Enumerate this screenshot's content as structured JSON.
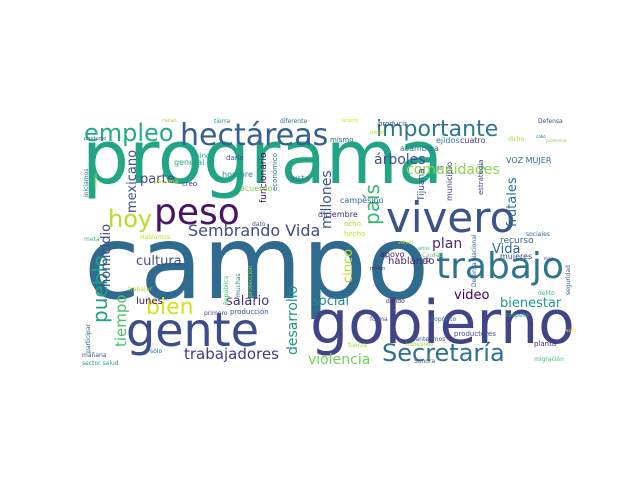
{
  "words": [
    {
      "text": "programa",
      "c": "#21a585"
    },
    {
      "text": "campo",
      "c": "#2e6b8e"
    },
    {
      "text": "gobierno",
      "c": "#414487"
    },
    {
      "text": "gente",
      "c": "#3d4d8a"
    },
    {
      "text": "vivero",
      "c": "#3b528b"
    },
    {
      "text": "trabajo",
      "c": "#2b758e"
    },
    {
      "text": "peso",
      "c": "#471365"
    },
    {
      "text": "hectáreas",
      "c": "#35608d"
    },
    {
      "text": "importante",
      "c": "#2a788e"
    },
    {
      "text": "empleo",
      "c": "#25ab82"
    },
    {
      "text": "Secretaría",
      "c": "#2d718e"
    },
    {
      "text": "hoy",
      "c": "#b5de2b"
    },
    {
      "text": "bien",
      "c": "#d2e21b"
    },
    {
      "text": "país",
      "c": "#38b977"
    },
    {
      "text": "pueblo",
      "c": "#1fa088"
    },
    {
      "text": "Sembrando Vida",
      "c": "#3e4a89"
    },
    {
      "text": "trabajadores",
      "c": "#443983"
    },
    {
      "text": "desarrollo",
      "c": "#1f968b"
    },
    {
      "text": "millones",
      "c": "#39558c"
    },
    {
      "text": "tiempo",
      "c": "#4ac16d"
    },
    {
      "text": "homicidio",
      "c": "#3e4989"
    },
    {
      "text": "mexicano",
      "c": "#3b528b"
    },
    {
      "text": "violencia",
      "c": "#73d056"
    },
    {
      "text": "comunidades",
      "c": "#8bd646"
    },
    {
      "text": "árboles",
      "c": "#3b528b"
    },
    {
      "text": "frutales",
      "c": "#2c728e"
    },
    {
      "text": "cultura",
      "c": "#3e4c8a"
    },
    {
      "text": "parte",
      "c": "#3f4889"
    },
    {
      "text": "salario",
      "c": "#46337f"
    },
    {
      "text": "social",
      "c": "#25858e"
    },
    {
      "text": "bienestar",
      "c": "#1f9a8a"
    },
    {
      "text": "plan",
      "c": "#472c7a"
    },
    {
      "text": "video",
      "c": "#440154"
    },
    {
      "text": "Vida",
      "c": "#31688e"
    },
    {
      "text": "cinco",
      "c": "#b8de29"
    },
    {
      "text": "hablando",
      "c": "#482173"
    },
    {
      "text": "lunes",
      "c": "#481769"
    },
    {
      "text": "recurso",
      "c": "#31688e"
    },
    {
      "text": "funcionario",
      "c": "#440154"
    },
    {
      "text": "justo",
      "c": "#2a788e"
    },
    {
      "text": "diciembre",
      "c": "#46307e"
    },
    {
      "text": "apoyo",
      "c": "#482071"
    },
    {
      "text": "mujeres",
      "c": "#3f4788"
    },
    {
      "text": "VOZ MUJER",
      "c": "#2e6e8e"
    },
    {
      "text": "cuatro",
      "c": "#463480"
    },
    {
      "text": "asamblea",
      "c": "#2a778e"
    },
    {
      "text": "ejidos",
      "c": "#277f8e"
    },
    {
      "text": "municipio",
      "c": "#404588"
    },
    {
      "text": "estrategia",
      "c": "#3e4a89"
    },
    {
      "text": "Tijuana",
      "c": "#3b528b"
    },
    {
      "text": "campesino",
      "c": "#31688e"
    },
    {
      "text": "económico",
      "c": "#2e6e8e"
    },
    {
      "text": "hombre",
      "c": "#23888e"
    },
    {
      "text": "general",
      "c": "#22a884"
    },
    {
      "text": "acuerdo",
      "c": "#79d151"
    },
    {
      "text": "creo",
      "c": "#453882"
    },
    {
      "text": "darle",
      "c": "#3a548c"
    },
    {
      "text": "sino",
      "c": "#22a884"
    },
    {
      "text": "técnicos",
      "c": "#33b67a"
    },
    {
      "text": "mismo",
      "c": "#31688e"
    },
    {
      "text": "producir",
      "c": "#3e4989"
    },
    {
      "text": "ahorro",
      "c": "#d8e219"
    },
    {
      "text": "diferente",
      "c": "#2d708e"
    },
    {
      "text": "tierra",
      "c": "#20928c"
    },
    {
      "text": "cacao",
      "c": "#a0da39"
    },
    {
      "text": "Defensa",
      "c": "#3e4a89"
    },
    {
      "text": "mejor",
      "c": "#c0df25"
    },
    {
      "text": "dicho",
      "c": "#addc30"
    },
    {
      "text": "ir",
      "c": "#3d4d8a"
    },
    {
      "text": "dato",
      "c": "#3b528b"
    },
    {
      "text": "forma",
      "c": "#3a548c"
    },
    {
      "text": "dando",
      "c": "#482576"
    },
    {
      "text": "ocho",
      "c": "#b2dd2d"
    },
    {
      "text": "hecho",
      "c": "#cde11d"
    },
    {
      "text": "muchas",
      "c": "#2c728e"
    },
    {
      "text": "República",
      "c": "#4ac16d"
    },
    {
      "text": "protección",
      "c": "#86d549"
    },
    {
      "text": "producción",
      "c": "#3b528b"
    },
    {
      "text": "primero",
      "c": "#3f4788"
    },
    {
      "text": "sólo",
      "c": "#2e6e8e"
    },
    {
      "text": "fuerza",
      "c": "#9fda3a"
    },
    {
      "text": "planteamos",
      "c": "#3b528b"
    },
    {
      "text": "trabajando",
      "c": "#a2da37"
    },
    {
      "text": "productores",
      "c": "#3b528b"
    },
    {
      "text": "propósito",
      "c": "#2e6e8e"
    },
    {
      "text": "Sonora",
      "c": "#3b528b"
    },
    {
      "text": "Defensa Nacional",
      "c": "#38598c"
    },
    {
      "text": "Ciudad",
      "c": "#65cb5e"
    },
    {
      "text": "millón",
      "c": "#482878"
    },
    {
      "text": "años",
      "c": "#3dbc74"
    },
    {
      "text": "volver",
      "c": "#b0dd2f"
    },
    {
      "text": "VOZ",
      "c": "#39568c"
    },
    {
      "text": "respeto",
      "c": "#29af7f"
    },
    {
      "text": "delito",
      "c": "#37b878"
    },
    {
      "text": "planta",
      "c": "#482878"
    },
    {
      "text": "migración",
      "c": "#3dbc74"
    },
    {
      "text": "sociales",
      "c": "#31688e"
    },
    {
      "text": "seguridad",
      "c": "#3b528b"
    },
    {
      "text": "mañana",
      "c": "#3b528b"
    },
    {
      "text": "sector salud",
      "c": "#1f9e89"
    },
    {
      "text": "participar",
      "c": "#31688e"
    },
    {
      "text": "cuento",
      "c": "#b5de2b"
    },
    {
      "text": "Hablamos",
      "c": "#c5e021"
    },
    {
      "text": "meta",
      "c": "#3fbc73"
    },
    {
      "text": "iniciamos",
      "c": "#2c728e"
    },
    {
      "text": "persona",
      "c": "#b8de29"
    },
    {
      "text": "trabajar",
      "c": "#b2dd2d"
    },
    {
      "text": "producto",
      "c": "#31688e"
    },
    {
      "text": "maíz",
      "c": "#46327e"
    },
    {
      "text": "problemas",
      "c": "#8fd744"
    },
    {
      "text": "suelo",
      "c": "#fde725"
    },
    {
      "text": "cabo",
      "c": "#2d708e"
    }
  ]
}
